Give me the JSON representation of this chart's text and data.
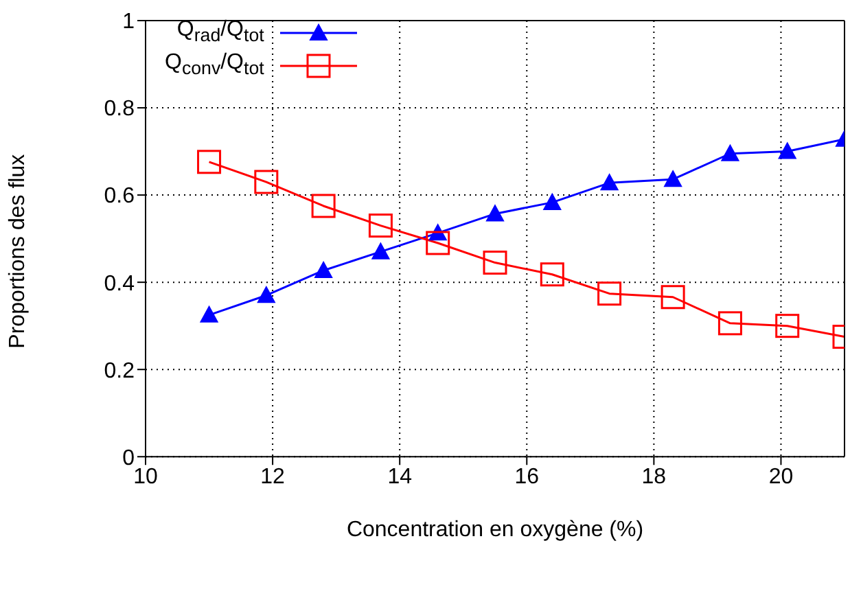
{
  "chart_data": {
    "type": "line",
    "xlabel": "Concentration en oxygène (%)",
    "ylabel": "Proportions des flux",
    "x": [
      11,
      11.9,
      12.8,
      13.7,
      14.6,
      15.5,
      16.4,
      17.3,
      18.3,
      19.2,
      20.1,
      21
    ],
    "series": [
      {
        "name": "Q$_{rad}$/Q$_{tot}$",
        "color": "#0000ff",
        "marker": "triangle",
        "values": [
          0.325,
          0.37,
          0.427,
          0.47,
          0.513,
          0.557,
          0.583,
          0.628,
          0.636,
          0.695,
          0.7,
          0.728
        ]
      },
      {
        "name": "Q$_{conv}$/Q$_{tot}$",
        "color": "#ff0000",
        "marker": "square",
        "values": [
          0.676,
          0.63,
          0.575,
          0.53,
          0.49,
          0.445,
          0.418,
          0.374,
          0.366,
          0.306,
          0.3,
          0.275
        ]
      }
    ],
    "xlim": [
      10,
      21
    ],
    "xticks": [
      10,
      12,
      14,
      16,
      18,
      20
    ],
    "ylim": [
      0,
      1
    ],
    "yticks": [
      0,
      0.2,
      0.4,
      0.6,
      0.8,
      1
    ],
    "grid": true,
    "legend": "top left",
    "line_style": "solid"
  }
}
